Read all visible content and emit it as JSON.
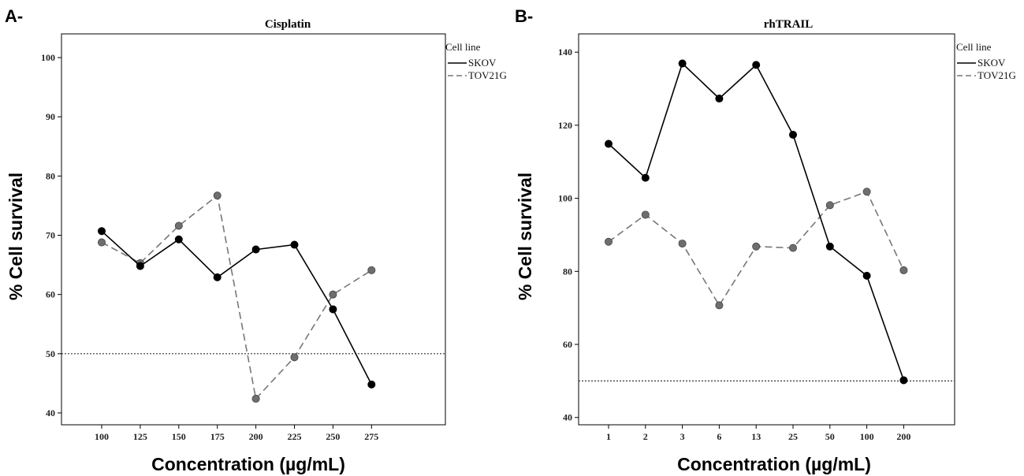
{
  "chart_data": [
    {
      "type": "line",
      "panel": "A-",
      "title": "Cisplatin",
      "xlabel": "Concentration (µg/mL)",
      "ylabel": "% Cell survival",
      "categories": [
        "100",
        "125",
        "150",
        "175",
        "200",
        "225",
        "250",
        "275"
      ],
      "ylim": [
        38,
        104
      ],
      "yticks": [
        40,
        50,
        60,
        70,
        80,
        90,
        100
      ],
      "reference_line": 50,
      "grid": false,
      "legend": {
        "title": "Cell line",
        "position": "top-right"
      },
      "series": [
        {
          "name": "SKOV",
          "style": "solid",
          "color": "#000000",
          "values": [
            70.7,
            64.8,
            69.3,
            62.9,
            67.6,
            68.4,
            57.5,
            44.8
          ]
        },
        {
          "name": "TOV21G",
          "style": "dashed",
          "color": "#777777",
          "values": [
            68.8,
            65.3,
            71.6,
            76.7,
            42.4,
            49.4,
            60.0,
            64.1
          ]
        }
      ]
    },
    {
      "type": "line",
      "panel": "B-",
      "title": "rhTRAIL",
      "xlabel": "Concentration (µg/mL)",
      "ylabel": "% Cell survival",
      "categories": [
        "1",
        "2",
        "3",
        "6",
        "13",
        "25",
        "50",
        "100",
        "200"
      ],
      "ylim": [
        38,
        145
      ],
      "yticks": [
        40,
        60,
        80,
        100,
        120,
        140
      ],
      "reference_line": 50,
      "grid": false,
      "legend": {
        "title": "Cell line",
        "position": "top-right"
      },
      "series": [
        {
          "name": "SKOV",
          "style": "solid",
          "color": "#000000",
          "values": [
            114.9,
            105.6,
            136.9,
            127.3,
            136.5,
            117.4,
            86.8,
            78.8,
            50.2
          ]
        },
        {
          "name": "TOV21G",
          "style": "dashed",
          "color": "#777777",
          "values": [
            88.1,
            95.5,
            87.6,
            70.7,
            86.8,
            86.4,
            98.1,
            101.8,
            80.3
          ]
        }
      ]
    }
  ]
}
